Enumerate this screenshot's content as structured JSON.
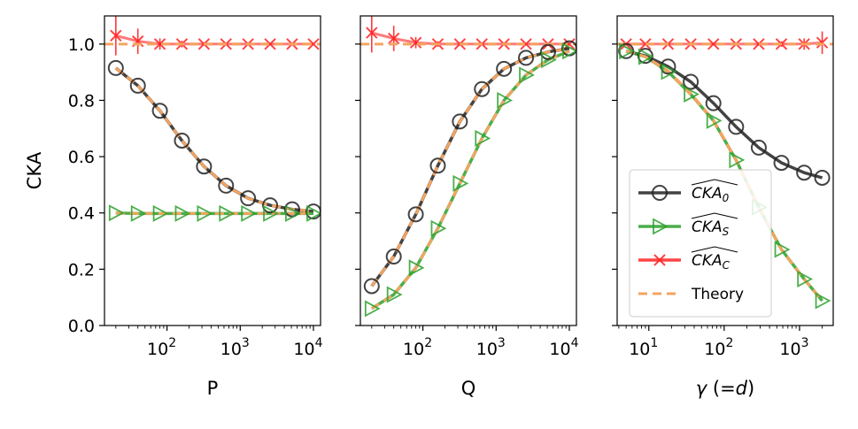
{
  "chart_data": [
    {
      "type": "line",
      "xscale": "log",
      "xlim": [
        14,
        12500
      ],
      "ylim": [
        0.0,
        1.1
      ],
      "xlabel": "P",
      "ylabel": "CKA",
      "xticks": [
        {
          "base": "10",
          "exp": "2"
        },
        {
          "base": "10",
          "exp": "3"
        },
        {
          "base": "10",
          "exp": "4"
        }
      ],
      "yticks": [
        "0.0",
        "0.2",
        "0.4",
        "0.6",
        "0.8",
        "1.0"
      ],
      "x": [
        20,
        40,
        80,
        160,
        320,
        640,
        1280,
        2560,
        5120,
        10000
      ],
      "series": [
        {
          "name": "CKA_0",
          "values": [
            0.915,
            0.852,
            0.763,
            0.657,
            0.565,
            0.497,
            0.452,
            0.427,
            0.413,
            0.405
          ]
        },
        {
          "name": "CKA_S",
          "values": [
            0.4,
            0.398,
            0.398,
            0.398,
            0.398,
            0.398,
            0.398,
            0.398,
            0.398,
            0.398
          ]
        },
        {
          "name": "CKA_C",
          "values": [
            1.03,
            1.01,
            1.0,
            1.0,
            1.0,
            1.0,
            1.0,
            1.0,
            1.0,
            1.0
          ],
          "errors": [
            0.07,
            0.045,
            0.02,
            0.012,
            0.006,
            0.003,
            0.002,
            0.002,
            0.002,
            0.002
          ]
        },
        {
          "name": "Theory",
          "values": [
            0.915,
            0.852,
            0.763,
            0.657,
            0.565,
            0.497,
            0.452,
            0.427,
            0.413,
            0.405
          ]
        }
      ]
    },
    {
      "type": "line",
      "xscale": "log",
      "xlim": [
        14,
        12500
      ],
      "ylim": [
        0.0,
        1.1
      ],
      "xlabel": "Q",
      "ylabel": "",
      "xticks": [
        {
          "base": "10",
          "exp": "2"
        },
        {
          "base": "10",
          "exp": "3"
        },
        {
          "base": "10",
          "exp": "4"
        }
      ],
      "yticks": [],
      "x": [
        20,
        40,
        80,
        160,
        320,
        640,
        1280,
        2560,
        5120,
        10000
      ],
      "series": [
        {
          "name": "CKA_0",
          "values": [
            0.14,
            0.245,
            0.395,
            0.568,
            0.725,
            0.84,
            0.912,
            0.951,
            0.972,
            0.985
          ]
        },
        {
          "name": "CKA_S",
          "values": [
            0.06,
            0.11,
            0.205,
            0.345,
            0.505,
            0.665,
            0.8,
            0.89,
            0.944,
            0.975
          ]
        },
        {
          "name": "CKA_C",
          "values": [
            1.04,
            1.02,
            1.005,
            1.0,
            1.0,
            1.0,
            1.0,
            1.0,
            1.0,
            1.0
          ],
          "errors": [
            0.07,
            0.045,
            0.02,
            0.01,
            0.006,
            0.003,
            0.002,
            0.002,
            0.002,
            0.002
          ]
        },
        {
          "name": "Theory",
          "values": [
            0.14,
            0.245,
            0.395,
            0.568,
            0.725,
            0.84,
            0.912,
            0.951,
            0.972,
            0.985
          ]
        }
      ]
    },
    {
      "type": "line",
      "xscale": "log",
      "xlim": [
        3.8,
        2800
      ],
      "ylim": [
        0.0,
        1.1
      ],
      "xlabel": "γ (=d)",
      "ylabel": "",
      "xticks": [
        {
          "base": "10",
          "exp": "1"
        },
        {
          "base": "10",
          "exp": "2"
        },
        {
          "base": "10",
          "exp": "3"
        }
      ],
      "yticks": [],
      "x": [
        5,
        9,
        18,
        36,
        72,
        144,
        288,
        576,
        1152,
        2000
      ],
      "series": [
        {
          "name": "CKA_0",
          "values": [
            0.975,
            0.958,
            0.92,
            0.866,
            0.79,
            0.706,
            0.632,
            0.578,
            0.543,
            0.525
          ]
        },
        {
          "name": "CKA_S",
          "values": [
            0.975,
            0.955,
            0.902,
            0.822,
            0.728,
            0.588,
            0.42,
            0.27,
            0.165,
            0.088
          ]
        },
        {
          "name": "CKA_C",
          "values": [
            1.0,
            1.0,
            1.0,
            1.0,
            1.0,
            1.0,
            1.0,
            1.0,
            1.0,
            1.005
          ],
          "errors": [
            0.002,
            0.002,
            0.002,
            0.002,
            0.002,
            0.003,
            0.005,
            0.01,
            0.02,
            0.04
          ]
        },
        {
          "name": "Theory",
          "values": [
            0.975,
            0.955,
            0.905,
            0.825,
            0.73,
            0.59,
            0.42,
            0.27,
            0.165,
            0.088
          ]
        }
      ]
    }
  ],
  "legend": {
    "placement": "lower-right of third panel",
    "entries": [
      {
        "key": "cka0",
        "prefix": "CKA",
        "sub": "0",
        "color": "#222222",
        "marker": "circle"
      },
      {
        "key": "ckas",
        "prefix": "CKA",
        "sub": "S",
        "color": "#2ca02c",
        "marker": "triangle-right"
      },
      {
        "key": "ckac",
        "prefix": "CKA",
        "sub": "C",
        "color": "#ff2222",
        "marker": "x"
      },
      {
        "key": "theory",
        "label": "Theory",
        "color": "#f4a460",
        "marker": "dashed"
      }
    ]
  },
  "colors": {
    "cka0": "#222222",
    "ckas": "#2ca02c",
    "ckac": "#ff2222",
    "theory": "#f4a460"
  }
}
